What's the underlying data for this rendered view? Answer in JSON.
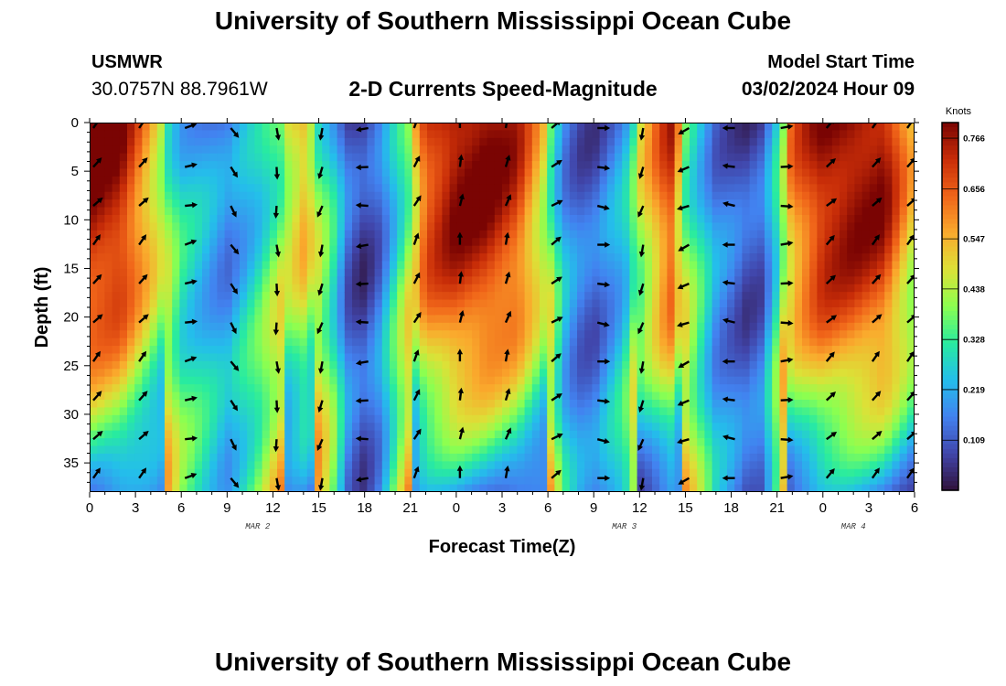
{
  "page": {
    "title_top": "University of Southern Mississippi Ocean Cube",
    "title_bottom": "University of Southern Mississippi Ocean Cube",
    "station_id": "USMWR",
    "station_coords": "30.0757N  88.7961W",
    "plot_title": "2-D Currents Speed-Magnitude",
    "model_label": "Model Start Time",
    "model_time": "03/02/2024 Hour 09"
  },
  "chart_data": {
    "type": "heatmap",
    "title": "2-D Currents Speed-Magnitude",
    "xlabel": "Forecast Time(Z)",
    "ylabel": "Depth (ft)",
    "x_ticks": [
      "0",
      "3",
      "6",
      "9",
      "12",
      "15",
      "18",
      "21",
      "0",
      "3",
      "6",
      "9",
      "12",
      "15",
      "18",
      "21",
      "0",
      "3",
      "6"
    ],
    "x_range_hours": [
      0,
      54
    ],
    "date_labels": [
      {
        "text": "MAR 2",
        "hour": 11
      },
      {
        "text": "MAR 3",
        "hour": 35
      },
      {
        "text": "MAR 4",
        "hour": 50
      }
    ],
    "y_ticks": [
      0,
      5,
      10,
      15,
      20,
      25,
      30,
      35
    ],
    "y_range_ft": [
      0,
      38
    ],
    "colorbar": {
      "unit": "Knots",
      "ticks": [
        0.766,
        0.656,
        0.547,
        0.438,
        0.328,
        0.219,
        0.109
      ],
      "min": 0.0,
      "max": 0.8
    },
    "speed_peaks_knots": {
      "hours": [
        0,
        2,
        4,
        6,
        8,
        9,
        11,
        14,
        16,
        17,
        18,
        19,
        21,
        22,
        24,
        26,
        28,
        30,
        31,
        32,
        33,
        35,
        36,
        38,
        39,
        41,
        43,
        44,
        45,
        46,
        48,
        50,
        52,
        54
      ],
      "values": [
        0.8,
        0.78,
        0.55,
        0.3,
        0.22,
        0.18,
        0.3,
        0.55,
        0.3,
        0.12,
        0.08,
        0.15,
        0.45,
        0.7,
        0.8,
        0.8,
        0.72,
        0.45,
        0.22,
        0.14,
        0.12,
        0.25,
        0.45,
        0.72,
        0.42,
        0.18,
        0.1,
        0.12,
        0.32,
        0.62,
        0.78,
        0.8,
        0.78,
        0.5
      ]
    },
    "vector_grid": {
      "hours": [
        0,
        3,
        6,
        9,
        12,
        15,
        18,
        21,
        24,
        27,
        30,
        33,
        36,
        39,
        42,
        45,
        48,
        51,
        54
      ],
      "depths_ft": [
        0,
        4,
        8,
        12,
        16,
        20,
        24,
        28,
        32,
        36
      ]
    },
    "vector_direction_deg_by_hour": [
      45,
      45,
      80,
      150,
      180,
      200,
      270,
      30,
      10,
      20,
      60,
      100,
      200,
      250,
      280,
      90,
      50,
      45,
      45
    ]
  }
}
